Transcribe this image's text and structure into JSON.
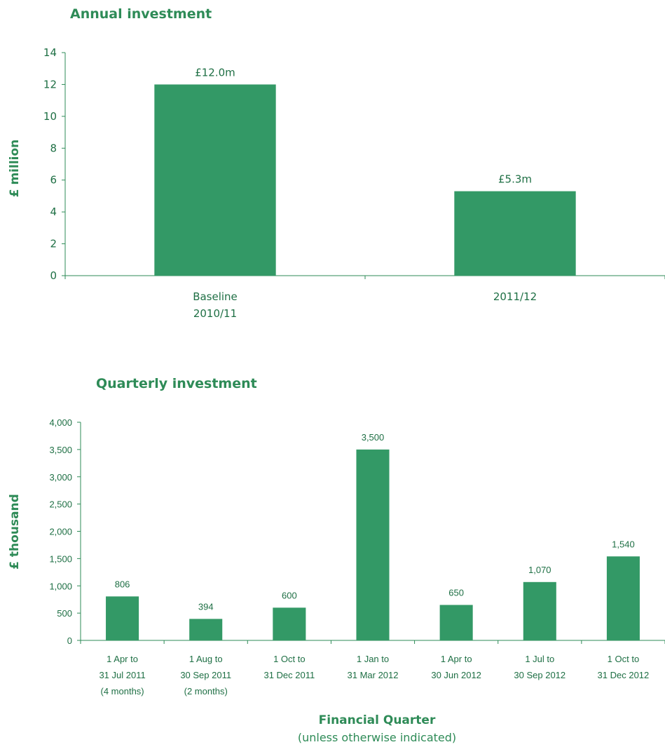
{
  "colors": {
    "bar": "#339966",
    "text": "#1e6f44",
    "heading": "#2e8b57"
  },
  "chart_data": [
    {
      "type": "bar",
      "title": "Annual investment",
      "xlabel": "",
      "ylabel": "£ million",
      "ylim": [
        0,
        14
      ],
      "yticks": [
        "0",
        "2",
        "4",
        "6",
        "8",
        "10",
        "12",
        "14"
      ],
      "categories": [
        [
          "Baseline",
          "2010/11"
        ],
        [
          "2011/12"
        ]
      ],
      "values": [
        12.0,
        5.3
      ],
      "data_labels": [
        "£12.0m",
        "£5.3m"
      ],
      "grid": false,
      "legend": "none"
    },
    {
      "type": "bar",
      "title": "Quarterly investment",
      "xlabel": "Financial Quarter",
      "xlabel_sub": "(unless otherwise indicated)",
      "ylabel": "£ thousand",
      "ylim": [
        0,
        4000
      ],
      "yticks": [
        "0",
        "500",
        "1,000",
        "1,500",
        "2,000",
        "2,500",
        "3,000",
        "3,500",
        "4,000"
      ],
      "categories": [
        [
          "1 Apr to",
          "31 Jul 2011",
          "(4 months)"
        ],
        [
          "1 Aug to",
          "30 Sep 2011",
          "(2 months)"
        ],
        [
          "1 Oct to",
          "31 Dec 2011"
        ],
        [
          "1 Jan to",
          "31 Mar 2012"
        ],
        [
          "1 Apr to",
          "30 Jun 2012"
        ],
        [
          "1 Jul to",
          "30 Sep 2012"
        ],
        [
          "1 Oct to",
          "31 Dec 2012"
        ]
      ],
      "values": [
        806,
        394,
        600,
        3500,
        650,
        1070,
        1540
      ],
      "data_labels": [
        "806",
        "394",
        "600",
        "3,500",
        "650",
        "1,070",
        "1,540"
      ],
      "grid": false,
      "legend": "none"
    }
  ]
}
